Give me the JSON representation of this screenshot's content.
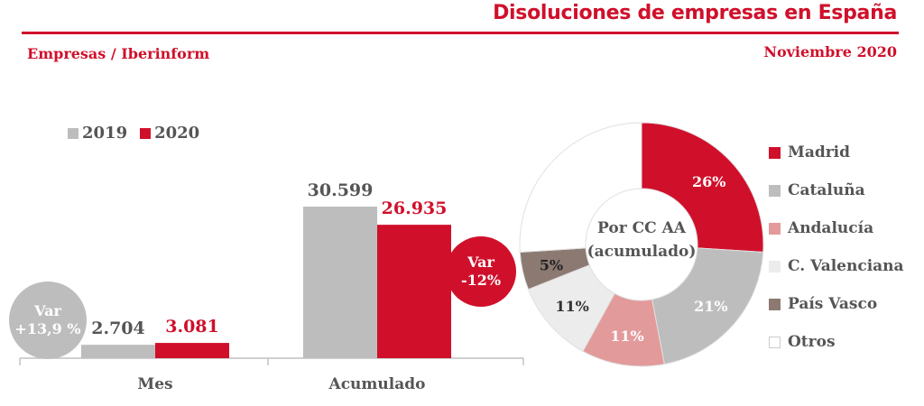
{
  "header": {
    "title": "Disoluciones de empresas en España",
    "subtitle": "Empresas / Iberinform",
    "date": "Noviembre 2020"
  },
  "colors": {
    "accent": "#d0102b",
    "grey": "#bdbdbd",
    "text": "#555555"
  },
  "chart_data": [
    {
      "type": "bar",
      "categories": [
        "Mes",
        "Acumulado"
      ],
      "series": [
        {
          "name": "2019",
          "values": [
            2704,
            30599
          ],
          "labels": [
            "2.704",
            "30.599"
          ],
          "color": "#bdbdbd"
        },
        {
          "name": "2020",
          "values": [
            3081,
            26935
          ],
          "labels": [
            "3.081",
            "26.935"
          ],
          "color": "#d0102b"
        }
      ],
      "variation": [
        {
          "label": "Var",
          "value": "+13,9 %"
        },
        {
          "label": "Var",
          "value": "-12%"
        }
      ]
    },
    {
      "type": "pie",
      "center_label": [
        "Por CC AA",
        "(acumulado)"
      ],
      "slices": [
        {
          "name": "Madrid",
          "value": 26,
          "label": "26%",
          "color": "#d0102b"
        },
        {
          "name": "Cataluña",
          "value": 21,
          "label": "21%",
          "color": "#bdbdbd"
        },
        {
          "name": "Andalucía",
          "value": 11,
          "label": "11%",
          "color": "#e39a9a"
        },
        {
          "name": "C. Valenciana",
          "value": 11,
          "label": "11%",
          "color": "#ececec"
        },
        {
          "name": "País Vasco",
          "value": 5,
          "label": "5%",
          "color": "#8c7a72"
        },
        {
          "name": "Otros",
          "value": 26,
          "label": "",
          "color": "#ffffff"
        }
      ]
    }
  ]
}
